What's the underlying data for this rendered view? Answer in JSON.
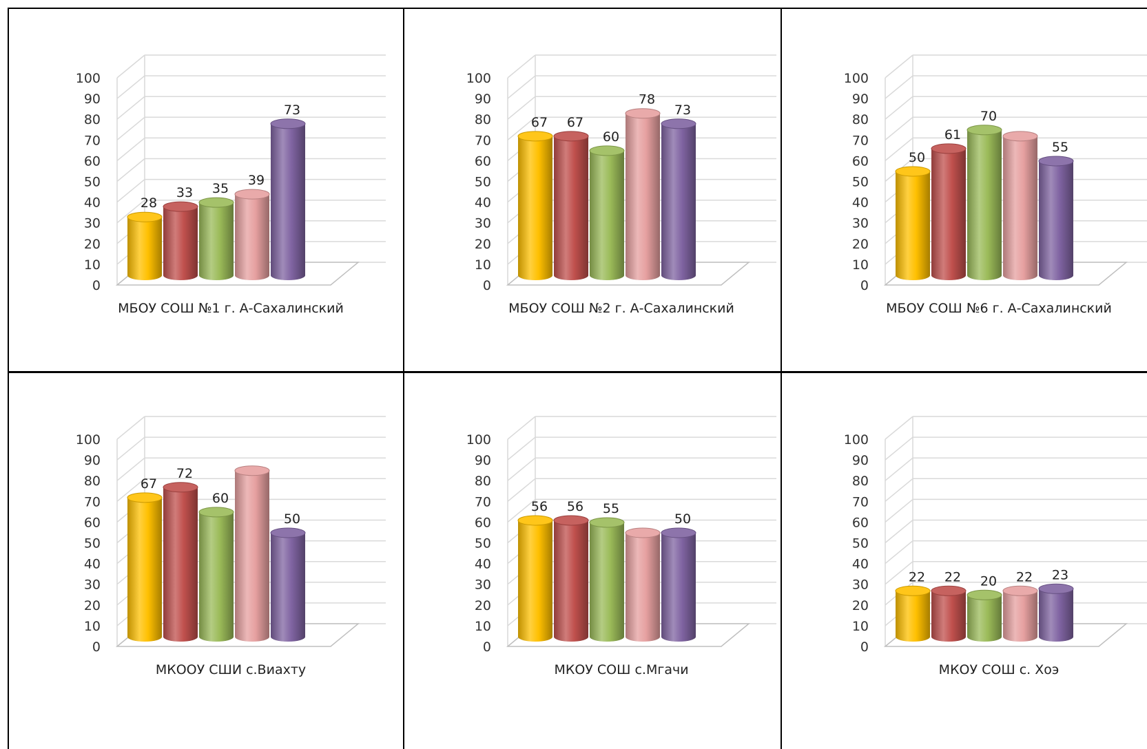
{
  "series_colors": [
    "#ffc000",
    "#c0504d",
    "#9bbb59",
    "#e6a0a0",
    "#8064a2"
  ],
  "chart_data": [
    {
      "type": "bar",
      "xcategory": "МБОУ СОШ №1 г. А-Сахалинский",
      "values": [
        28,
        33,
        35,
        39,
        73
      ],
      "data_labels": [
        "28",
        "33",
        "35",
        "39",
        "73"
      ],
      "ylim": [
        0,
        100
      ],
      "yticks": [
        "0",
        "10",
        "20",
        "30",
        "40",
        "50",
        "60",
        "70",
        "80",
        "90",
        "100"
      ],
      "grid": true,
      "legend": "none"
    },
    {
      "type": "bar",
      "xcategory": "МБОУ СОШ №2 г. А-Сахалинский",
      "values": [
        67,
        67,
        60,
        78,
        73
      ],
      "data_labels": [
        "67",
        "67",
        "60",
        "78",
        "73"
      ],
      "ylim": [
        0,
        100
      ],
      "yticks": [
        "0",
        "10",
        "20",
        "30",
        "40",
        "50",
        "60",
        "70",
        "80",
        "90",
        "100"
      ],
      "grid": true,
      "legend": "none"
    },
    {
      "type": "bar",
      "xcategory": "МБОУ СОШ №6 г. А-Сахалинский",
      "values": [
        50,
        61,
        70,
        67,
        55
      ],
      "data_labels": [
        "50",
        "61",
        "70",
        "",
        "55"
      ],
      "ylim": [
        0,
        100
      ],
      "yticks": [
        "0",
        "10",
        "20",
        "30",
        "40",
        "50",
        "60",
        "70",
        "80",
        "90",
        "100"
      ],
      "grid": true,
      "legend": "none"
    },
    {
      "type": "bar",
      "xcategory": "МКООУ СШИ  с.Виахту",
      "values": [
        67,
        72,
        60,
        80,
        50
      ],
      "data_labels": [
        "67",
        "72",
        "60",
        "",
        "50"
      ],
      "ylim": [
        0,
        100
      ],
      "yticks": [
        "0",
        "10",
        "20",
        "30",
        "40",
        "50",
        "60",
        "70",
        "80",
        "90",
        "100"
      ],
      "grid": true,
      "legend": "none"
    },
    {
      "type": "bar",
      "xcategory": "МКОУ СОШ с.Мгачи",
      "values": [
        56,
        56,
        55,
        50,
        50
      ],
      "data_labels": [
        "56",
        "56",
        "55",
        "",
        "50"
      ],
      "ylim": [
        0,
        100
      ],
      "yticks": [
        "0",
        "10",
        "20",
        "30",
        "40",
        "50",
        "60",
        "70",
        "80",
        "90",
        "100"
      ],
      "grid": true,
      "legend": "none"
    },
    {
      "type": "bar",
      "xcategory": "МКОУ СОШ с. Хоэ",
      "values": [
        22,
        22,
        20,
        22,
        23
      ],
      "data_labels": [
        "22",
        "22",
        "20",
        "22",
        "23"
      ],
      "ylim": [
        0,
        100
      ],
      "yticks": [
        "0",
        "10",
        "20",
        "30",
        "40",
        "50",
        "60",
        "70",
        "80",
        "90",
        "100"
      ],
      "grid": true,
      "legend": "none"
    }
  ]
}
